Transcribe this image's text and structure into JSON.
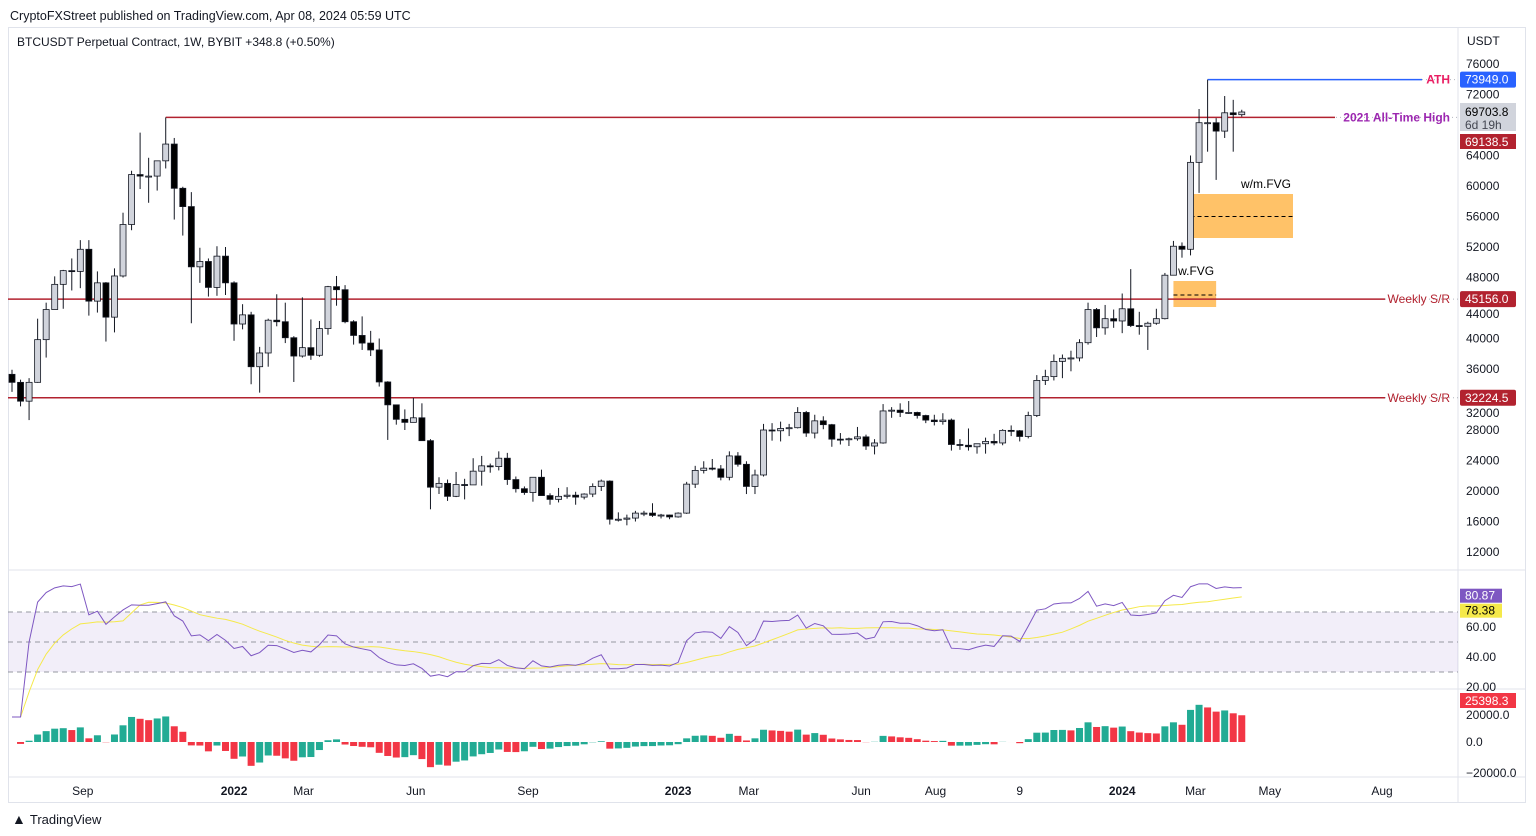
{
  "publisher_line": "CryptoFXStreet published on TradingView.com, Apr 08, 2024 05:59 UTC",
  "legend": "BTCUSDT Perpetual Contract, 1W, BYBIT  +348.8 (+0.50%)",
  "currency": "USDT",
  "brand": "TradingView",
  "colors": {
    "up_fill": "#d1d4dc",
    "down_fill": "#000000",
    "wick": "#131722",
    "sr": "#b2222f",
    "ath": "#2962ff",
    "ath_label": "#e91e63",
    "ath2021_label": "#9c27b0",
    "fvg": "#ffb74d",
    "rsi": "#7e57c2",
    "rsi_ma": "#f5e94a",
    "hist_up": "#22ab94",
    "hist_down": "#f23645"
  },
  "chart_data": {
    "type": "candlestick",
    "interval": "1W",
    "first_week": "2021-07-05",
    "ohlc": [
      [
        35300,
        35900,
        33000,
        34250
      ],
      [
        34250,
        34600,
        31100,
        31780
      ],
      [
        31780,
        34800,
        29300,
        34250
      ],
      [
        34250,
        42600,
        34200,
        39850
      ],
      [
        39850,
        44700,
        37500,
        43800
      ],
      [
        43800,
        48150,
        43800,
        47100
      ],
      [
        47100,
        49000,
        43900,
        48900
      ],
      [
        48900,
        50500,
        46300,
        48800
      ],
      [
        48800,
        52900,
        46600,
        51700
      ],
      [
        51700,
        52900,
        43000,
        44900
      ],
      [
        44900,
        48800,
        43400,
        47300
      ],
      [
        47300,
        47400,
        39600,
        42800
      ],
      [
        42800,
        49200,
        40800,
        48200
      ],
      [
        48200,
        56500,
        48000,
        54950
      ],
      [
        54950,
        62000,
        54200,
        61500
      ],
      [
        61500,
        67000,
        59600,
        61300
      ],
      [
        61300,
        63700,
        57800,
        61300
      ],
      [
        61300,
        63000,
        59400,
        63300
      ],
      [
        63300,
        69000,
        62300,
        65500
      ],
      [
        65500,
        66300,
        55600,
        59700
      ],
      [
        59700,
        59900,
        53500,
        57300
      ],
      [
        57300,
        59200,
        42000,
        49400
      ],
      [
        49400,
        51900,
        47300,
        50100
      ],
      [
        50100,
        50500,
        45500,
        46700
      ],
      [
        46700,
        52100,
        45600,
        50800
      ],
      [
        50800,
        52000,
        45700,
        47300
      ],
      [
        47300,
        47500,
        39700,
        41900
      ],
      [
        41900,
        44500,
        41200,
        43100
      ],
      [
        43100,
        43500,
        34000,
        36300
      ],
      [
        36300,
        38900,
        32900,
        38100
      ],
      [
        38100,
        42600,
        36300,
        42400
      ],
      [
        42400,
        45800,
        41600,
        42200
      ],
      [
        42200,
        44700,
        39400,
        40100
      ],
      [
        40100,
        40300,
        34300,
        37700
      ],
      [
        37700,
        45400,
        37500,
        38800
      ],
      [
        38800,
        42500,
        37200,
        37800
      ],
      [
        37800,
        42300,
        37600,
        41300
      ],
      [
        41300,
        46900,
        40500,
        46800
      ],
      [
        46800,
        48200,
        44300,
        46400
      ],
      [
        46400,
        47000,
        42000,
        42200
      ],
      [
        42200,
        42400,
        39200,
        40400
      ],
      [
        40400,
        42900,
        38500,
        39400
      ],
      [
        39400,
        41000,
        37700,
        38500
      ],
      [
        38500,
        40000,
        33700,
        34300
      ],
      [
        34300,
        34400,
        26700,
        31300
      ],
      [
        31300,
        31300,
        28700,
        29400
      ],
      [
        29400,
        30700,
        28000,
        29000
      ],
      [
        29000,
        32200,
        29300,
        29600
      ],
      [
        29600,
        31500,
        26600,
        26600
      ],
      [
        26600,
        26800,
        17600,
        20500
      ],
      [
        20500,
        21800,
        19600,
        21000
      ],
      [
        21000,
        21500,
        18700,
        19300
      ],
      [
        19300,
        22500,
        19200,
        20850
      ],
      [
        20850,
        21600,
        18900,
        20800
      ],
      [
        20800,
        24300,
        20800,
        22600
      ],
      [
        22600,
        24600,
        20700,
        23300
      ],
      [
        23300,
        23600,
        22400,
        23200
      ],
      [
        23200,
        25200,
        22700,
        24300
      ],
      [
        24300,
        25000,
        20800,
        21500
      ],
      [
        21500,
        21900,
        19800,
        20300
      ],
      [
        20300,
        20600,
        19500,
        19800
      ],
      [
        19800,
        21800,
        18600,
        21800
      ],
      [
        21800,
        22800,
        19400,
        19400
      ],
      [
        19400,
        19700,
        18200,
        18900
      ],
      [
        18900,
        20400,
        18500,
        19300
      ],
      [
        19300,
        20500,
        19000,
        19450
      ],
      [
        19450,
        19900,
        18200,
        19200
      ],
      [
        19200,
        19700,
        18900,
        19600
      ],
      [
        19600,
        21000,
        19200,
        20600
      ],
      [
        20600,
        21500,
        20000,
        21300
      ],
      [
        21300,
        21400,
        15600,
        16300
      ],
      [
        16300,
        17200,
        16000,
        16300
      ],
      [
        16300,
        16900,
        15500,
        16450
      ],
      [
        16450,
        17400,
        16000,
        17100
      ],
      [
        17100,
        17400,
        16700,
        17100
      ],
      [
        17100,
        18400,
        16600,
        16800
      ],
      [
        16800,
        17000,
        16400,
        16850
      ],
      [
        16850,
        16900,
        16300,
        16600
      ],
      [
        16600,
        17200,
        16500,
        17100
      ],
      [
        17100,
        21200,
        17000,
        20900
      ],
      [
        20900,
        23300,
        20400,
        22700
      ],
      [
        22700,
        23900,
        22300,
        23000
      ],
      [
        23000,
        24200,
        22700,
        22900
      ],
      [
        22900,
        23400,
        21400,
        21800
      ],
      [
        21800,
        25200,
        21400,
        24600
      ],
      [
        24600,
        25100,
        23200,
        23500
      ],
      [
        23500,
        23900,
        19600,
        20600
      ],
      [
        20600,
        22800,
        19600,
        22100
      ],
      [
        22100,
        28800,
        21900,
        28000
      ],
      [
        28000,
        28900,
        26600,
        27900
      ],
      [
        27900,
        29100,
        26500,
        28200
      ],
      [
        28200,
        28800,
        27200,
        28300
      ],
      [
        28300,
        31000,
        28200,
        30300
      ],
      [
        30300,
        30500,
        27100,
        27600
      ],
      [
        27600,
        30000,
        26900,
        29200
      ],
      [
        29200,
        29800,
        28100,
        28700
      ],
      [
        28700,
        28800,
        25800,
        26800
      ],
      [
        26800,
        27600,
        26100,
        26750
      ],
      [
        26750,
        27000,
        25900,
        26850
      ],
      [
        26850,
        28400,
        26600,
        27100
      ],
      [
        27100,
        27400,
        25400,
        25900
      ],
      [
        25900,
        26800,
        24800,
        26300
      ],
      [
        26300,
        31400,
        26200,
        30500
      ],
      [
        30500,
        31000,
        29600,
        30600
      ],
      [
        30600,
        31500,
        29700,
        30300
      ],
      [
        30300,
        31800,
        30100,
        30300
      ],
      [
        30300,
        30400,
        29500,
        29900
      ],
      [
        29900,
        30000,
        28900,
        29300
      ],
      [
        29300,
        30000,
        28600,
        29100
      ],
      [
        29100,
        30200,
        28700,
        29300
      ],
      [
        29300,
        29500,
        25300,
        26100
      ],
      [
        26100,
        26800,
        25400,
        26000
      ],
      [
        26000,
        28200,
        25300,
        25800
      ],
      [
        25800,
        26100,
        24900,
        26200
      ],
      [
        26200,
        27000,
        24900,
        26500
      ],
      [
        26500,
        27500,
        26000,
        26300
      ],
      [
        26300,
        28100,
        26000,
        27950
      ],
      [
        27950,
        28600,
        27200,
        27900
      ],
      [
        27900,
        28000,
        26500,
        27150
      ],
      [
        27150,
        30400,
        26900,
        29900
      ],
      [
        29900,
        35200,
        29700,
        34500
      ],
      [
        34500,
        35900,
        33900,
        35000
      ],
      [
        35000,
        37900,
        34500,
        37000
      ],
      [
        37000,
        37900,
        34800,
        37400
      ],
      [
        37400,
        38400,
        35700,
        37450
      ],
      [
        37450,
        39900,
        37000,
        39450
      ],
      [
        39450,
        44700,
        39200,
        43800
      ],
      [
        43800,
        44000,
        40200,
        41400
      ],
      [
        41400,
        44400,
        40500,
        42600
      ],
      [
        42600,
        43800,
        41400,
        42300
      ],
      [
        42300,
        45900,
        40700,
        43900
      ],
      [
        43900,
        49100,
        41500,
        41700
      ],
      [
        41700,
        43500,
        40500,
        41600
      ],
      [
        41600,
        42200,
        38500,
        42000
      ],
      [
        42000,
        43900,
        41800,
        42600
      ],
      [
        42600,
        48600,
        42500,
        48300
      ],
      [
        48300,
        52800,
        48300,
        52100
      ],
      [
        52100,
        52600,
        50600,
        51700
      ],
      [
        51700,
        64000,
        50900,
        63100
      ],
      [
        63100,
        70100,
        59100,
        68300
      ],
      [
        68300,
        73949,
        64500,
        68300
      ],
      [
        68300,
        68900,
        60800,
        67200
      ],
      [
        67200,
        71800,
        66300,
        69600
      ],
      [
        69600,
        71300,
        64500,
        69355
      ],
      [
        69355,
        70000,
        69100,
        69704
      ]
    ],
    "price_axis": {
      "range": [
        12000,
        76000
      ],
      "ticks": [
        76000,
        72000,
        64000,
        60000,
        56000,
        52000,
        48000,
        44000,
        40000,
        36000,
        32000,
        28000,
        24000,
        20000,
        16000,
        12000
      ]
    },
    "time_axis": [
      {
        "label": "Sep",
        "date": "2021-09-01"
      },
      {
        "label": "2022",
        "date": "2022-01-03",
        "bold": true
      },
      {
        "label": "Mar",
        "date": "2022-03-01"
      },
      {
        "label": "Jun",
        "date": "2022-06-01"
      },
      {
        "label": "Sep",
        "date": "2022-09-01"
      },
      {
        "label": "2023",
        "date": "2023-01-02",
        "bold": true
      },
      {
        "label": "Mar",
        "date": "2023-03-01"
      },
      {
        "label": "Jun",
        "date": "2023-06-01"
      },
      {
        "label": "Aug",
        "date": "2023-08-01"
      },
      {
        "label": "9",
        "date": "2023-10-09"
      },
      {
        "label": "2024",
        "date": "2024-01-01",
        "bold": true
      },
      {
        "label": "Mar",
        "date": "2024-03-01"
      },
      {
        "label": "May",
        "date": "2024-05-01"
      },
      {
        "label": "Aug",
        "date": "2024-08-01"
      }
    ],
    "levels": [
      {
        "label": "ATH",
        "price": 73949.0,
        "badge": "73949.0",
        "from": "2024-03-11",
        "to": "2024-07-08",
        "kind": "ath"
      },
      {
        "label": "2021 All-Time High",
        "price": 69000,
        "from": "2021-11-08",
        "to": "2024-09-23",
        "kind": "ath2021"
      },
      {
        "label": "Weekly S/R",
        "price": 45156.0,
        "badge": "45156.0",
        "kind": "sr"
      },
      {
        "label": "Weekly S/R",
        "price": 32224.5,
        "badge": "32224.5",
        "kind": "sr"
      }
    ],
    "fvg_zones": [
      {
        "label": "w/m.FVG",
        "top": 58950,
        "bottom": 53180,
        "mid": 56000,
        "from": "2024-02-26",
        "to": "2024-05-20"
      },
      {
        "label": "w.FVG",
        "top": 47540,
        "bottom": 44130,
        "mid": 45700,
        "from": "2024-02-12",
        "to": "2024-03-18"
      }
    ],
    "last_price": {
      "value": "69703.8",
      "countdown": "6d 19h"
    },
    "prev_close_badge": "69138.5",
    "rsi": {
      "length": 14,
      "ma_length": 14,
      "value": "80.87",
      "ma_value": "78.38",
      "bands": [
        70,
        50,
        30
      ],
      "ticks": [
        "60.00",
        "40.00",
        "20.00"
      ],
      "range": [
        20,
        90
      ]
    },
    "histogram": {
      "value": "25398.3",
      "ticks": [
        "20000.0",
        "0.0",
        "−20000.0"
      ],
      "range": [
        -28000,
        30000
      ]
    }
  }
}
